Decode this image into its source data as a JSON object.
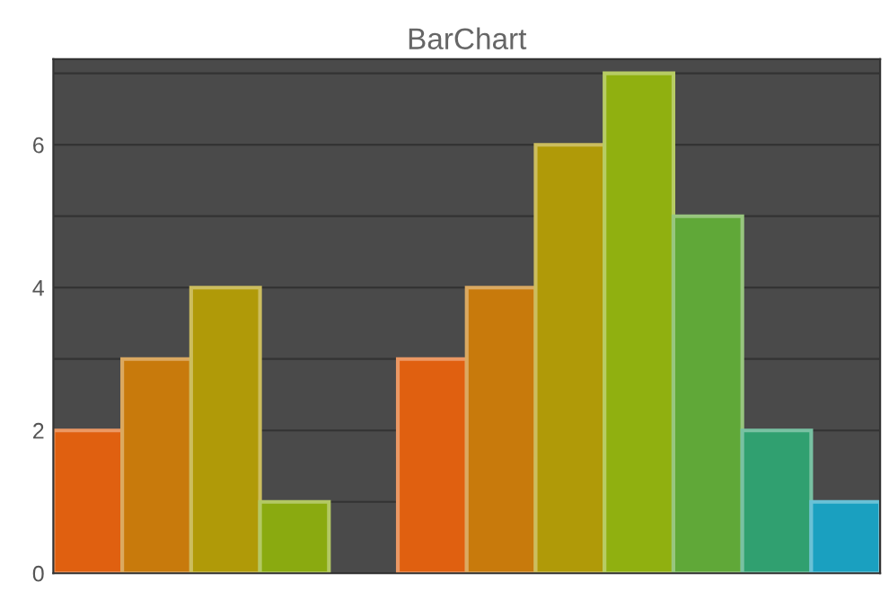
{
  "chart_data": {
    "type": "bar",
    "title": "BarChart",
    "categories": [
      null,
      null,
      null,
      null,
      null,
      null,
      null,
      null,
      null,
      null,
      null,
      null
    ],
    "values": [
      2,
      3,
      4,
      1,
      null,
      3,
      4,
      6,
      7,
      5,
      2,
      1
    ],
    "colors": [
      "#e06010",
      "#c87a0c",
      "#b09a08",
      "#8aaa10",
      "#000000",
      "#e06010",
      "#c87a0c",
      "#b09a08",
      "#90b010",
      "#60a838",
      "#30a070",
      "#1aa0c0"
    ],
    "ylim": [
      0,
      7.2
    ],
    "yticks": [
      0,
      {
        "value": 1,
        "label": null
      },
      2,
      {
        "value": 3,
        "label": null
      },
      4,
      {
        "value": 5,
        "label": null
      },
      6,
      {
        "value": 7,
        "label": null
      }
    ],
    "grid": "y",
    "tick_labels": "y"
  }
}
